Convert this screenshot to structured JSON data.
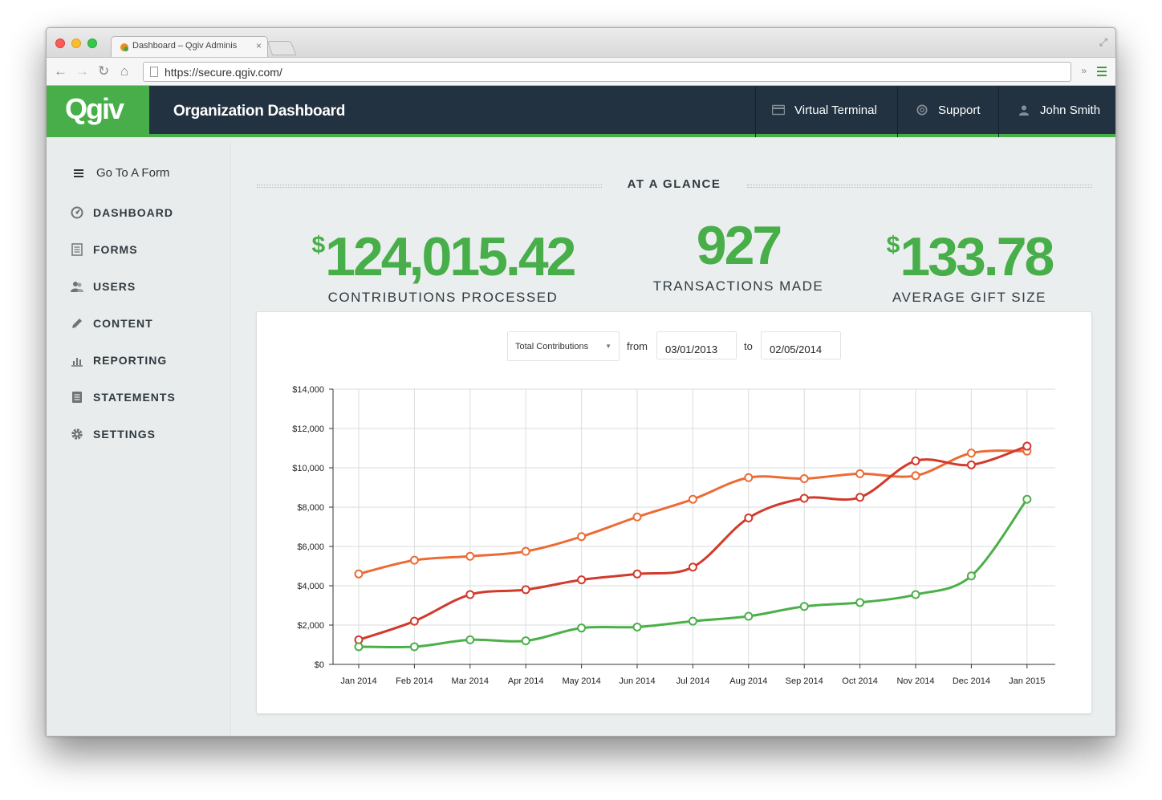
{
  "browser": {
    "tab_title": "Dashboard – Qgiv Adminis",
    "url": "https://secure.qgiv.com/"
  },
  "header": {
    "logo": "Qgiv",
    "title": "Organization Dashboard",
    "nav": [
      {
        "label": "Virtual Terminal",
        "icon": "credit-card-icon"
      },
      {
        "label": "Support",
        "icon": "lifebuoy-icon"
      },
      {
        "label": "John Smith",
        "icon": "user-icon"
      }
    ]
  },
  "sidebar": {
    "goto_label": "Go To A Form",
    "items": [
      {
        "label": "DASHBOARD",
        "icon": "dashboard-icon"
      },
      {
        "label": "FORMS",
        "icon": "form-icon"
      },
      {
        "label": "USERS",
        "icon": "users-icon"
      },
      {
        "label": "CONTENT",
        "icon": "pencil-icon"
      },
      {
        "label": "REPORTING",
        "icon": "bar-chart-icon"
      },
      {
        "label": "STATEMENTS",
        "icon": "statement-icon"
      },
      {
        "label": "SETTINGS",
        "icon": "gear-icon"
      }
    ]
  },
  "glance": {
    "heading": "AT A GLANCE",
    "stats": [
      {
        "currency": "$",
        "value": "124,015.42",
        "label": "CONTRIBUTIONS PROCESSED"
      },
      {
        "currency": "",
        "value": "927",
        "label": "TRANSACTIONS MADE"
      },
      {
        "currency": "$",
        "value": "133.78",
        "label": "AVERAGE GIFT SIZE"
      }
    ]
  },
  "filters": {
    "metric": "Total Contributions",
    "from_label": "from",
    "from_date": "03/01/2013",
    "to_label": "to",
    "to_date": "02/05/2014"
  },
  "colors": {
    "accent": "#47ae49",
    "header_bg": "#223240",
    "series_orange": "#ec6b35",
    "series_red": "#d13a2c",
    "series_green": "#4cb04a"
  },
  "chart_data": {
    "type": "line",
    "categories": [
      "Jan 2014",
      "Feb 2014",
      "Mar 2014",
      "Apr 2014",
      "May 2014",
      "Jun 2014",
      "Jul 2014",
      "Aug 2014",
      "Sep 2014",
      "Oct 2014",
      "Nov 2014",
      "Dec 2014",
      "Jan 2015"
    ],
    "y_tick_labels": [
      "$0",
      "$2,000",
      "$4,000",
      "$6,000",
      "$8,000",
      "$10,000",
      "$12,000",
      "$14,000"
    ],
    "ylim": [
      0,
      14000
    ],
    "grid": true,
    "series": [
      {
        "color": "#ec6b35",
        "values": [
          4600,
          5300,
          5500,
          5750,
          6500,
          7500,
          8400,
          9500,
          9450,
          9700,
          9600,
          10750,
          10850
        ]
      },
      {
        "color": "#d13a2c",
        "values": [
          1250,
          2200,
          3550,
          3800,
          4300,
          4600,
          4950,
          7450,
          8450,
          8500,
          10350,
          10150,
          11100
        ]
      },
      {
        "color": "#4cb04a",
        "values": [
          900,
          900,
          1250,
          1200,
          1850,
          1900,
          2200,
          2450,
          2950,
          3150,
          3550,
          4500,
          8400
        ]
      }
    ]
  }
}
